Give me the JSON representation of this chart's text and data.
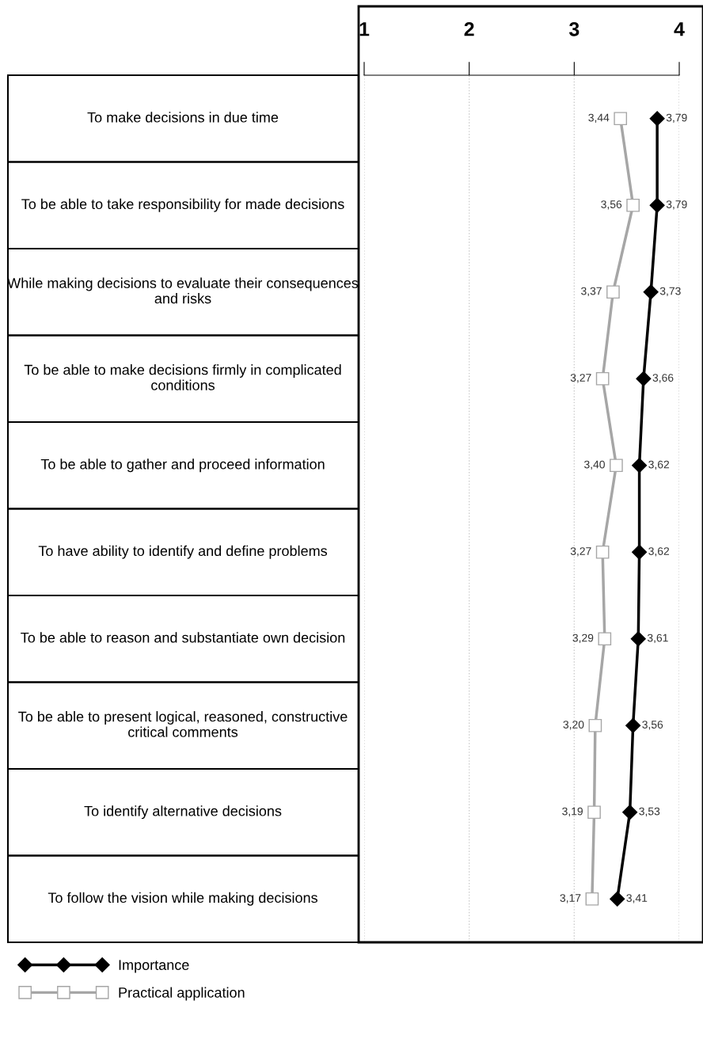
{
  "chart_data": {
    "type": "line",
    "orientation": "horizontal",
    "categories": [
      "To make decisions in due time",
      "To be able to take responsibility for made decisions",
      "While making decisions to evaluate their consequences and risks",
      "To be able to make decisions firmly in complicated conditions",
      "To be able to gather and proceed information",
      "To have ability to identify and define problems",
      "To be able to reason and substantiate own decision",
      "To be able to present logical, reasoned, constructive critical comments",
      "To identify alternative decisions",
      "To follow the vision while making decisions"
    ],
    "series": [
      {
        "name": "Importance",
        "color": "#000000",
        "marker": "diamond",
        "values": [
          3.79,
          3.79,
          3.73,
          3.66,
          3.62,
          3.62,
          3.61,
          3.56,
          3.53,
          3.41
        ],
        "value_labels": [
          "3,79",
          "3,79",
          "3,73",
          "3,66",
          "3,62",
          "3,62",
          "3,61",
          "3,56",
          "3,53",
          "3,41"
        ]
      },
      {
        "name": "Practical application",
        "color": "#a6a6a6",
        "marker": "square",
        "values": [
          3.44,
          3.56,
          3.37,
          3.27,
          3.4,
          3.27,
          3.29,
          3.2,
          3.19,
          3.17
        ],
        "value_labels": [
          "3,44",
          "3,56",
          "3,37",
          "3,27",
          "3,40",
          "3,27",
          "3,29",
          "3,20",
          "3,19",
          "3,17"
        ]
      }
    ],
    "xlim": [
      1,
      4
    ],
    "xticks": [
      1,
      2,
      3,
      4
    ],
    "grid": "x",
    "legend": "bottom",
    "line_style": "solid"
  }
}
